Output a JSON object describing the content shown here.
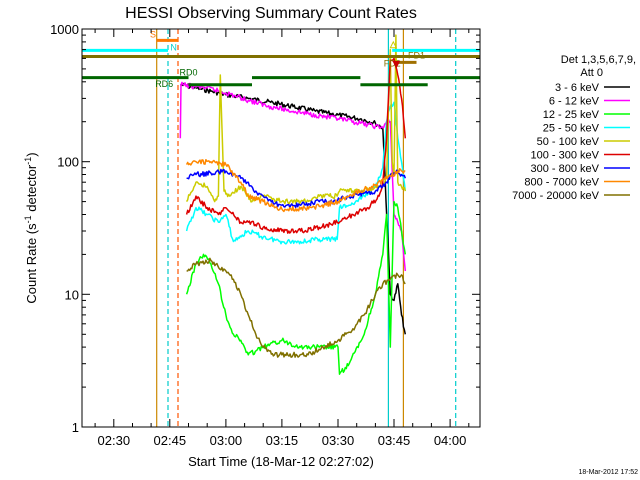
{
  "chart_data": {
    "type": "line",
    "title": "HESSI Observing Summary Count Rates",
    "xlabel": "Start Time (18-Mar-12 02:27:02)",
    "ylabel": "Count Rate (s-1 detector-1)",
    "ylabel_parts": {
      "main": "Count Rate (s",
      "sup1": "-1",
      "mid": " detector",
      "sup2": "-1",
      "end": ")"
    },
    "y_scale": "log",
    "ylim": [
      1,
      1000
    ],
    "xlim_minutes": [
      21.5,
      128
    ],
    "x_ticks": [
      {
        "t": 30,
        "label": "02:30"
      },
      {
        "t": 45,
        "label": "02:45"
      },
      {
        "t": 60,
        "label": "03:00"
      },
      {
        "t": 75,
        "label": "03:15"
      },
      {
        "t": 90,
        "label": "03:30"
      },
      {
        "t": 105,
        "label": "03:45"
      },
      {
        "t": 120,
        "label": "04:00"
      }
    ],
    "y_ticks": [
      {
        "v": 1,
        "label": "1"
      },
      {
        "v": 10,
        "label": "10"
      },
      {
        "v": 100,
        "label": "100"
      },
      {
        "v": 1000,
        "label": "1000"
      }
    ],
    "legend_header": [
      "Det 1,3,5,6,7,9,",
      "Att 0"
    ],
    "legend_placement": "right",
    "series": [
      {
        "name": "3 - 6 keV",
        "color": "#000000",
        "x": [
          47.8,
          48,
          52,
          56,
          60,
          66,
          72,
          78,
          84,
          90,
          96,
          100,
          102,
          104,
          105,
          106,
          107,
          108
        ],
        "values": [
          380,
          380,
          360,
          340,
          320,
          300,
          280,
          260,
          240,
          225,
          210,
          195,
          180,
          10,
          9,
          12,
          7,
          5
        ]
      },
      {
        "name": "6 - 12 keV",
        "color": "#ff00ff",
        "x": [
          47.8,
          48,
          55,
          60,
          66,
          72,
          78,
          84,
          90,
          96,
          100,
          102,
          103,
          104,
          105,
          106,
          107,
          108
        ],
        "values": [
          150,
          380,
          360,
          330,
          290,
          260,
          240,
          225,
          210,
          195,
          185,
          180,
          200,
          200,
          40,
          35,
          30,
          15
        ]
      },
      {
        "name": "12 - 25 keV",
        "color": "#00ff00",
        "x": [
          49.5,
          52,
          54,
          56,
          58,
          60,
          62,
          64,
          66,
          70,
          75,
          80,
          85,
          90,
          90.4,
          93,
          97,
          100,
          102,
          103,
          104,
          104.5,
          105,
          106,
          107,
          108
        ],
        "values": [
          10,
          17,
          20,
          17,
          12,
          7,
          5,
          4.5,
          3.5,
          4,
          4.5,
          4,
          4,
          4,
          2.5,
          3,
          5,
          10,
          20,
          40,
          4,
          15,
          50,
          45,
          30,
          20
        ]
      },
      {
        "name": "25 - 50 keV",
        "color": "#00ffff",
        "x": [
          49.5,
          52,
          55,
          58,
          60,
          62,
          66,
          70,
          75,
          80,
          85,
          89.8,
          90.4,
          94,
          97,
          100,
          102,
          103,
          104,
          105,
          106,
          107,
          108
        ],
        "values": [
          30,
          45,
          40,
          35,
          40,
          25,
          30,
          27,
          25,
          25,
          26,
          26,
          45,
          48,
          55,
          65,
          90,
          200,
          260,
          280,
          150,
          100,
          60
        ]
      },
      {
        "name": "50 - 100 keV",
        "color": "#cccc00",
        "x": [
          49.5,
          52,
          55,
          57,
          58,
          58.5,
          59.5,
          61,
          64,
          67,
          70,
          75,
          80,
          85,
          89.8,
          90.4,
          94,
          98,
          101,
          102,
          103,
          104,
          104.5,
          105,
          105.5,
          106,
          107,
          108
        ],
        "values": [
          50,
          70,
          65,
          50,
          55,
          450,
          60,
          55,
          65,
          50,
          55,
          50,
          50,
          55,
          55,
          60,
          60,
          62,
          65,
          65,
          75,
          700,
          100,
          80,
          900,
          70,
          65,
          60
        ]
      },
      {
        "name": "100 - 300 keV",
        "color": "#dd0000",
        "x": [
          49.5,
          52,
          55,
          58,
          60,
          64,
          66,
          70,
          75,
          80,
          85,
          89.8,
          90.4,
          94,
          98,
          101,
          102,
          103,
          104,
          105,
          106,
          107,
          108
        ],
        "values": [
          40,
          55,
          45,
          40,
          45,
          35,
          35,
          32,
          30,
          30,
          32,
          35,
          35,
          40,
          45,
          55,
          70,
          150,
          580,
          600,
          450,
          300,
          150
        ]
      },
      {
        "name": "300 - 800 keV",
        "color": "#0000ff",
        "x": [
          49.5,
          52,
          56,
          60,
          62,
          64,
          66,
          68,
          70,
          73,
          75,
          80,
          85,
          89.8,
          90.4,
          93,
          97,
          100,
          103,
          104.5,
          106,
          107,
          108
        ],
        "values": [
          75,
          80,
          82,
          85,
          80,
          75,
          70,
          60,
          55,
          48,
          47,
          47,
          50,
          50,
          52,
          55,
          58,
          60,
          70,
          80,
          85,
          80,
          75
        ]
      },
      {
        "name": "800 - 7000 keV",
        "color": "#ff8800",
        "x": [
          49.5,
          52,
          56,
          60,
          64,
          66,
          70,
          73,
          75,
          80,
          85,
          90,
          93,
          96,
          99,
          102,
          104,
          106,
          107,
          108
        ],
        "values": [
          95,
          100,
          100,
          95,
          70,
          55,
          50,
          45,
          44,
          44,
          46,
          50,
          55,
          60,
          65,
          72,
          78,
          85,
          85,
          85
        ]
      },
      {
        "name": "7000 - 20000 keV",
        "color": "#807000",
        "x": [
          49.5,
          52,
          56,
          60,
          62,
          64,
          66,
          68,
          70,
          73,
          75,
          78,
          82,
          86,
          90,
          94,
          97,
          100,
          102,
          104,
          106,
          107,
          108
        ],
        "values": [
          15,
          17,
          18,
          15,
          13,
          10,
          7,
          5,
          4,
          3.5,
          3.5,
          3.5,
          3.5,
          4,
          4.5,
          5.5,
          7,
          10,
          12,
          13,
          14,
          14,
          12
        ]
      }
    ],
    "vertical_lines": [
      {
        "t": 41.5,
        "color": "#cc8800",
        "style": "solid"
      },
      {
        "t": 44.5,
        "color": "#00cccc",
        "style": "dashed"
      },
      {
        "t": 47.2,
        "color": "#ff5500",
        "style": "dashed"
      },
      {
        "t": 103.5,
        "color": "#00cccc",
        "style": "solid"
      },
      {
        "t": 107.5,
        "color": "#cc8800",
        "style": "solid"
      },
      {
        "t": 121.5,
        "color": "#00cccc",
        "style": "dashed"
      }
    ],
    "flag_bars": [
      {
        "label": "S",
        "color": "#ff7700",
        "y": 820,
        "segments": [
          [
            41.5,
            47.2
          ]
        ]
      },
      {
        "label": "N",
        "color": "#00ffff",
        "y": 690,
        "segments": [
          [
            21.5,
            44.5
          ],
          [
            104.5,
            128
          ]
        ]
      },
      {
        "label": "FD1",
        "color": "#807000",
        "y": 620,
        "segments": [
          [
            21.5,
            128
          ]
        ]
      },
      {
        "label": "FD2",
        "color": "#a07000",
        "y": 560,
        "segments": [
          [
            106,
            111
          ]
        ]
      },
      {
        "label": "RD0",
        "color": "#006600",
        "y": 430,
        "segments": [
          [
            21.5,
            50
          ],
          [
            67,
            96
          ],
          [
            109,
            128
          ]
        ]
      },
      {
        "label": "RD6",
        "color": "#006600",
        "y": 380,
        "segments": [
          [
            50,
            67
          ],
          [
            96,
            114
          ]
        ]
      }
    ],
    "flag_labels": [
      {
        "label": "S",
        "color": "#ff7700",
        "t": 40.5,
        "y": 860
      },
      {
        "label": "N",
        "color": "#00cccc",
        "t": 46,
        "y": 690
      },
      {
        "label": "FD1",
        "color": "#807000",
        "t": 111,
        "y": 600
      },
      {
        "label": "FD2",
        "color": "#807000",
        "t": 104.5,
        "y": 520
      },
      {
        "label": "RD0",
        "color": "#006600",
        "t": 50,
        "y": 445
      },
      {
        "label": "RD6",
        "color": "#006600",
        "t": 43.5,
        "y": 365
      }
    ],
    "flag_marker_color": "#cccc00",
    "date_stamp": "18-Mar-2012 17:52"
  }
}
